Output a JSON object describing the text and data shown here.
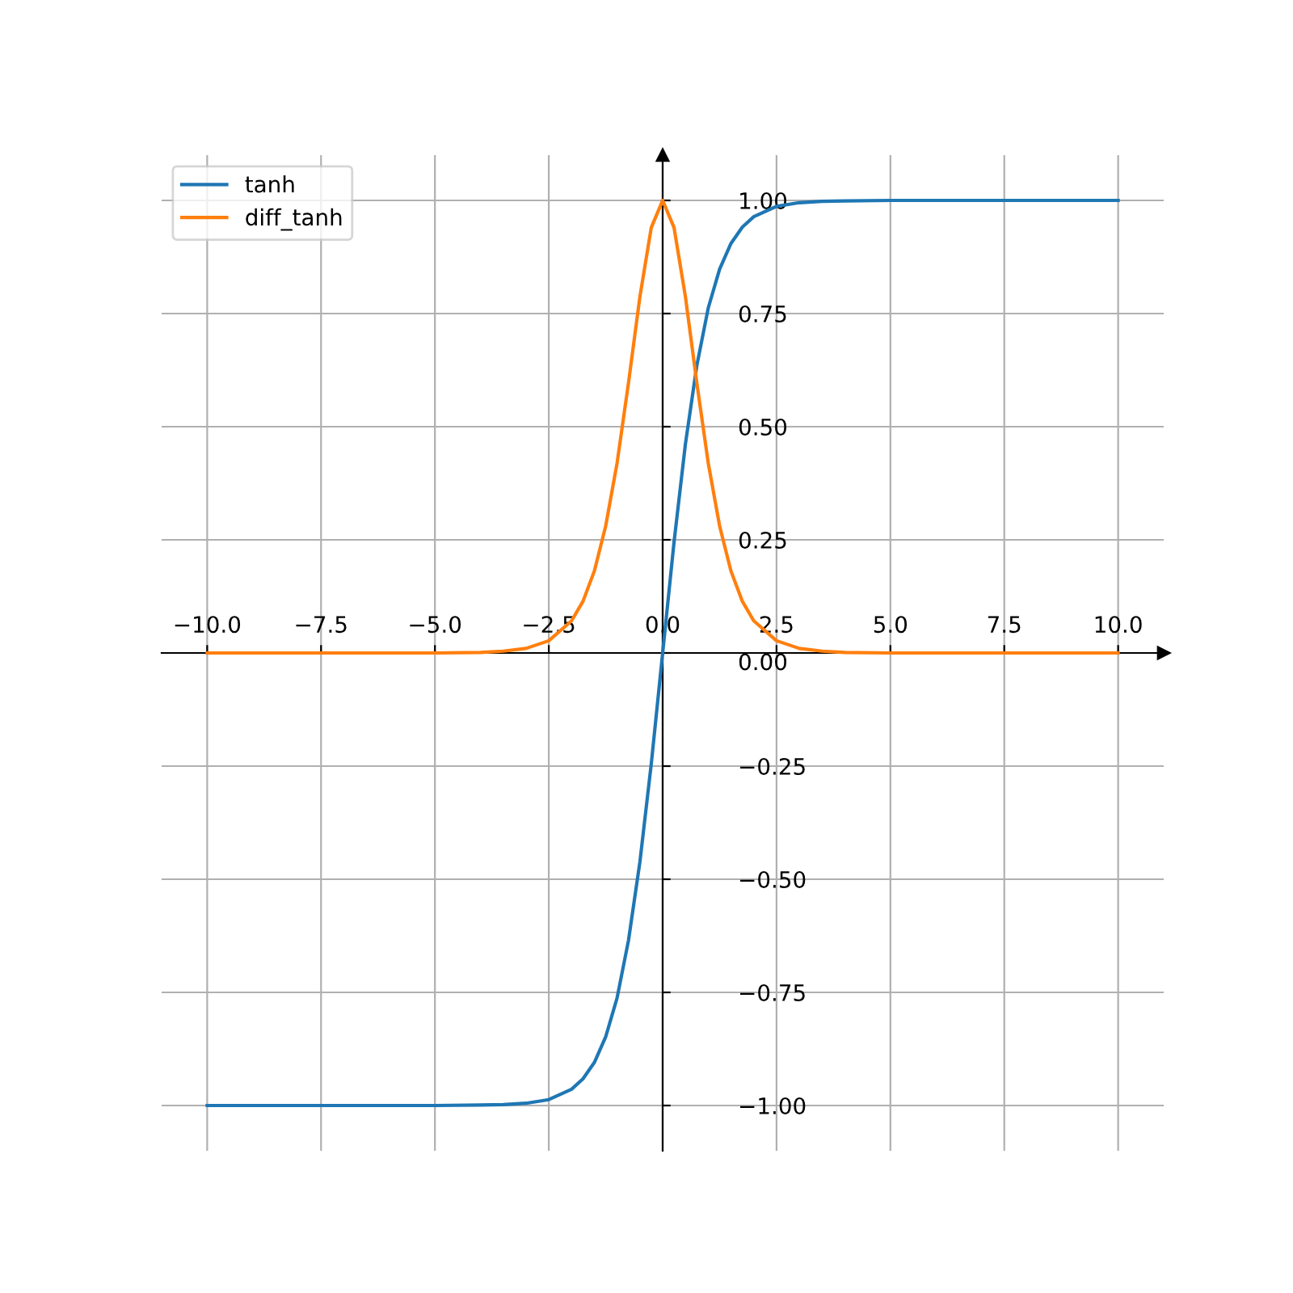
{
  "chart_data": {
    "type": "line",
    "series": [
      {
        "name": "tanh",
        "color": "#1f77b4",
        "x": [
          -10,
          -5,
          -4,
          -3.5,
          -3,
          -2.5,
          -2,
          -1.75,
          -1.5,
          -1.25,
          -1,
          -0.75,
          -0.5,
          -0.25,
          0,
          0.25,
          0.5,
          0.75,
          1,
          1.25,
          1.5,
          1.75,
          2,
          2.5,
          3,
          3.5,
          4,
          5,
          10
        ],
        "values": [
          -1.0,
          -1.0,
          -0.999,
          -0.998,
          -0.995,
          -0.987,
          -0.964,
          -0.941,
          -0.905,
          -0.848,
          -0.762,
          -0.635,
          -0.462,
          -0.245,
          0.0,
          0.245,
          0.462,
          0.635,
          0.762,
          0.848,
          0.905,
          0.941,
          0.964,
          0.987,
          0.995,
          0.998,
          0.999,
          1.0,
          1.0
        ]
      },
      {
        "name": "diff_tanh",
        "color": "#ff7f0e",
        "x": [
          -10,
          -5,
          -4,
          -3.5,
          -3,
          -2.5,
          -2,
          -1.75,
          -1.5,
          -1.25,
          -1,
          -0.75,
          -0.5,
          -0.25,
          0,
          0.25,
          0.5,
          0.75,
          1,
          1.25,
          1.5,
          1.75,
          2,
          2.5,
          3,
          3.5,
          4,
          5,
          10
        ],
        "values": [
          0.0,
          0.0,
          0.001,
          0.004,
          0.01,
          0.027,
          0.071,
          0.114,
          0.181,
          0.281,
          0.42,
          0.597,
          0.787,
          0.94,
          1.0,
          0.94,
          0.787,
          0.597,
          0.42,
          0.281,
          0.181,
          0.114,
          0.071,
          0.027,
          0.01,
          0.004,
          0.001,
          0.0,
          0.0
        ]
      }
    ],
    "xlim": [
      -11,
      11
    ],
    "ylim": [
      -1.1,
      1.1
    ],
    "xticks": [
      {
        "value": -10,
        "label": "−10.0"
      },
      {
        "value": -7.5,
        "label": "−7.5"
      },
      {
        "value": -5,
        "label": "−5.0"
      },
      {
        "value": -2.5,
        "label": "−2.5"
      },
      {
        "value": 0,
        "label": "0.0"
      },
      {
        "value": 2.5,
        "label": "2.5"
      },
      {
        "value": 5,
        "label": "5.0"
      },
      {
        "value": 7.5,
        "label": "7.5"
      },
      {
        "value": 10,
        "label": "10.0"
      }
    ],
    "yticks": [
      {
        "value": -1,
        "label": "−1.00"
      },
      {
        "value": -0.75,
        "label": "−0.75"
      },
      {
        "value": -0.5,
        "label": "−0.50"
      },
      {
        "value": -0.25,
        "label": "−0.25"
      },
      {
        "value": 0,
        "label": "0.00"
      },
      {
        "value": 0.25,
        "label": "0.25"
      },
      {
        "value": 0.5,
        "label": "0.50"
      },
      {
        "value": 0.75,
        "label": "0.75"
      },
      {
        "value": 1,
        "label": "1.00"
      }
    ],
    "grid": true,
    "legend": "top left",
    "marker": "none",
    "line_style": "solid"
  }
}
